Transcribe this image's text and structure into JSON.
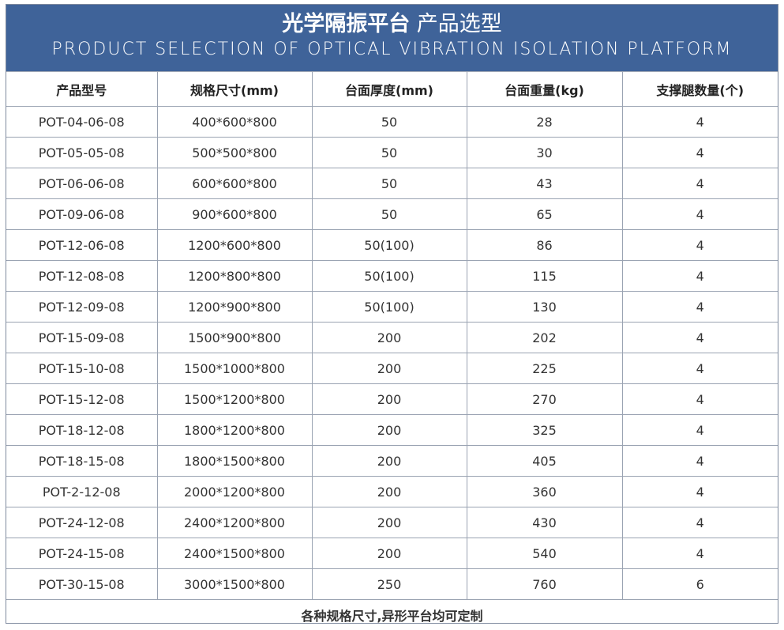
{
  "header": {
    "title_bold": "光学隔振平台",
    "title_rest": "产品选型",
    "subtitle": "PRODUCT SELECTION OF OPTICAL VIBRATION ISOLATION PLATFORM"
  },
  "columns": [
    "产品型号",
    "规格尺寸(mm)",
    "台面厚度(mm)",
    "台面重量(kg)",
    "支撑腿数量(个)"
  ],
  "rows": [
    [
      "POT-04-06-08",
      "400*600*800",
      "50",
      "28",
      "4"
    ],
    [
      "POT-05-05-08",
      "500*500*800",
      "50",
      "30",
      "4"
    ],
    [
      "POT-06-06-08",
      "600*600*800",
      "50",
      "43",
      "4"
    ],
    [
      "POT-09-06-08",
      "900*600*800",
      "50",
      "65",
      "4"
    ],
    [
      "POT-12-06-08",
      "1200*600*800",
      "50(100)",
      "86",
      "4"
    ],
    [
      "POT-12-08-08",
      "1200*800*800",
      "50(100)",
      "115",
      "4"
    ],
    [
      "POT-12-09-08",
      "1200*900*800",
      "50(100)",
      "130",
      "4"
    ],
    [
      "POT-15-09-08",
      "1500*900*800",
      "200",
      "202",
      "4"
    ],
    [
      "POT-15-10-08",
      "1500*1000*800",
      "200",
      "225",
      "4"
    ],
    [
      "POT-15-12-08",
      "1500*1200*800",
      "200",
      "270",
      "4"
    ],
    [
      "POT-18-12-08",
      "1800*1200*800",
      "200",
      "325",
      "4"
    ],
    [
      "POT-18-15-08",
      "1800*1500*800",
      "200",
      "405",
      "4"
    ],
    [
      "POT-2-12-08",
      "2000*1200*800",
      "200",
      "360",
      "4"
    ],
    [
      "POT-24-12-08",
      "2400*1200*800",
      "200",
      "430",
      "4"
    ],
    [
      "POT-24-15-08",
      "2400*1500*800",
      "200",
      "540",
      "4"
    ],
    [
      "POT-30-15-08",
      "3000*1500*800",
      "250",
      "760",
      "6"
    ]
  ],
  "footer_note": "各种规格尺寸,异形平台均可定制",
  "colors": {
    "banner": "#3f6399",
    "grid": "#9aa3b2"
  }
}
